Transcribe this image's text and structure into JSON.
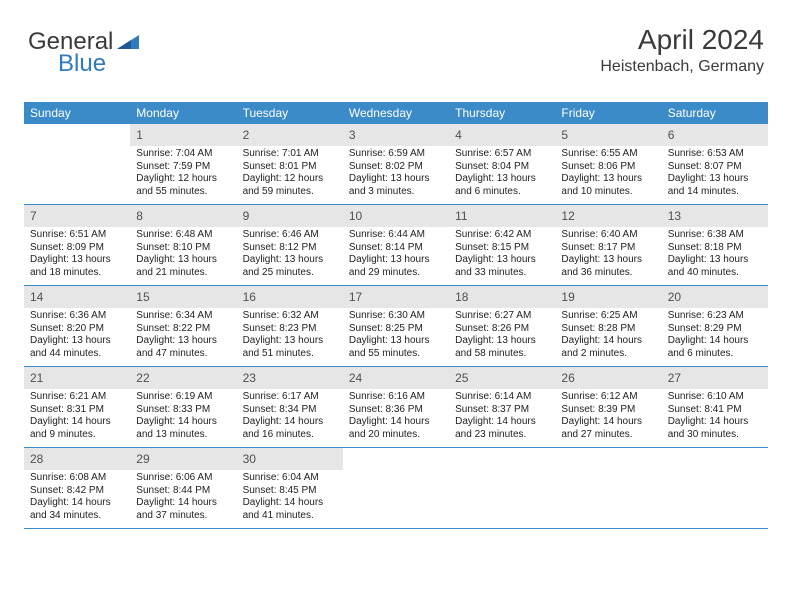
{
  "brand": {
    "text1": "General",
    "text2": "Blue"
  },
  "header": {
    "month_year": "April 2024",
    "location": "Heistenbach, Germany"
  },
  "day_names": [
    "Sunday",
    "Monday",
    "Tuesday",
    "Wednesday",
    "Thursday",
    "Friday",
    "Saturday"
  ],
  "colors": {
    "header_bg": "#3b8bc9",
    "header_text": "#ffffff",
    "band_bg": "#e6e6e6",
    "row_border": "#3b8bc9",
    "text": "#222222",
    "logo_gray": "#3a3a3a",
    "logo_blue": "#2f7bbf"
  },
  "typography": {
    "month_fontsize": 28,
    "location_fontsize": 16,
    "dayname_fontsize": 12,
    "daynum_fontsize": 12,
    "cell_fontsize": 10
  },
  "weeks": [
    [
      {
        "empty": true
      },
      {
        "num": "1",
        "sunrise": "7:04 AM",
        "sunset": "7:59 PM",
        "daylight": "12 hours and 55 minutes."
      },
      {
        "num": "2",
        "sunrise": "7:01 AM",
        "sunset": "8:01 PM",
        "daylight": "12 hours and 59 minutes."
      },
      {
        "num": "3",
        "sunrise": "6:59 AM",
        "sunset": "8:02 PM",
        "daylight": "13 hours and 3 minutes."
      },
      {
        "num": "4",
        "sunrise": "6:57 AM",
        "sunset": "8:04 PM",
        "daylight": "13 hours and 6 minutes."
      },
      {
        "num": "5",
        "sunrise": "6:55 AM",
        "sunset": "8:06 PM",
        "daylight": "13 hours and 10 minutes."
      },
      {
        "num": "6",
        "sunrise": "6:53 AM",
        "sunset": "8:07 PM",
        "daylight": "13 hours and 14 minutes."
      }
    ],
    [
      {
        "num": "7",
        "sunrise": "6:51 AM",
        "sunset": "8:09 PM",
        "daylight": "13 hours and 18 minutes."
      },
      {
        "num": "8",
        "sunrise": "6:48 AM",
        "sunset": "8:10 PM",
        "daylight": "13 hours and 21 minutes."
      },
      {
        "num": "9",
        "sunrise": "6:46 AM",
        "sunset": "8:12 PM",
        "daylight": "13 hours and 25 minutes."
      },
      {
        "num": "10",
        "sunrise": "6:44 AM",
        "sunset": "8:14 PM",
        "daylight": "13 hours and 29 minutes."
      },
      {
        "num": "11",
        "sunrise": "6:42 AM",
        "sunset": "8:15 PM",
        "daylight": "13 hours and 33 minutes."
      },
      {
        "num": "12",
        "sunrise": "6:40 AM",
        "sunset": "8:17 PM",
        "daylight": "13 hours and 36 minutes."
      },
      {
        "num": "13",
        "sunrise": "6:38 AM",
        "sunset": "8:18 PM",
        "daylight": "13 hours and 40 minutes."
      }
    ],
    [
      {
        "num": "14",
        "sunrise": "6:36 AM",
        "sunset": "8:20 PM",
        "daylight": "13 hours and 44 minutes."
      },
      {
        "num": "15",
        "sunrise": "6:34 AM",
        "sunset": "8:22 PM",
        "daylight": "13 hours and 47 minutes."
      },
      {
        "num": "16",
        "sunrise": "6:32 AM",
        "sunset": "8:23 PM",
        "daylight": "13 hours and 51 minutes."
      },
      {
        "num": "17",
        "sunrise": "6:30 AM",
        "sunset": "8:25 PM",
        "daylight": "13 hours and 55 minutes."
      },
      {
        "num": "18",
        "sunrise": "6:27 AM",
        "sunset": "8:26 PM",
        "daylight": "13 hours and 58 minutes."
      },
      {
        "num": "19",
        "sunrise": "6:25 AM",
        "sunset": "8:28 PM",
        "daylight": "14 hours and 2 minutes."
      },
      {
        "num": "20",
        "sunrise": "6:23 AM",
        "sunset": "8:29 PM",
        "daylight": "14 hours and 6 minutes."
      }
    ],
    [
      {
        "num": "21",
        "sunrise": "6:21 AM",
        "sunset": "8:31 PM",
        "daylight": "14 hours and 9 minutes."
      },
      {
        "num": "22",
        "sunrise": "6:19 AM",
        "sunset": "8:33 PM",
        "daylight": "14 hours and 13 minutes."
      },
      {
        "num": "23",
        "sunrise": "6:17 AM",
        "sunset": "8:34 PM",
        "daylight": "14 hours and 16 minutes."
      },
      {
        "num": "24",
        "sunrise": "6:16 AM",
        "sunset": "8:36 PM",
        "daylight": "14 hours and 20 minutes."
      },
      {
        "num": "25",
        "sunrise": "6:14 AM",
        "sunset": "8:37 PM",
        "daylight": "14 hours and 23 minutes."
      },
      {
        "num": "26",
        "sunrise": "6:12 AM",
        "sunset": "8:39 PM",
        "daylight": "14 hours and 27 minutes."
      },
      {
        "num": "27",
        "sunrise": "6:10 AM",
        "sunset": "8:41 PM",
        "daylight": "14 hours and 30 minutes."
      }
    ],
    [
      {
        "num": "28",
        "sunrise": "6:08 AM",
        "sunset": "8:42 PM",
        "daylight": "14 hours and 34 minutes."
      },
      {
        "num": "29",
        "sunrise": "6:06 AM",
        "sunset": "8:44 PM",
        "daylight": "14 hours and 37 minutes."
      },
      {
        "num": "30",
        "sunrise": "6:04 AM",
        "sunset": "8:45 PM",
        "daylight": "14 hours and 41 minutes."
      },
      {
        "empty": true
      },
      {
        "empty": true
      },
      {
        "empty": true
      },
      {
        "empty": true
      }
    ]
  ],
  "labels": {
    "sunrise_prefix": "Sunrise: ",
    "sunset_prefix": "Sunset: ",
    "daylight_prefix": "Daylight: "
  }
}
